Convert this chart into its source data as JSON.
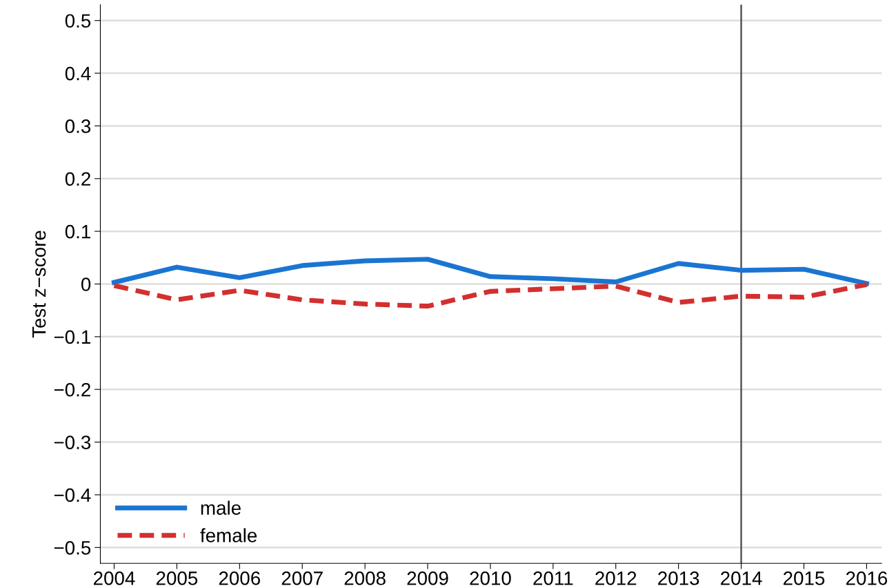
{
  "chart_data": {
    "type": "line",
    "ylabel": "Test z−score",
    "x": [
      2004,
      2005,
      2006,
      2007,
      2008,
      2009,
      2010,
      2011,
      2012,
      2013,
      2014,
      2015,
      2016
    ],
    "series": [
      {
        "name": "male",
        "color": "#1a75d2",
        "line_style": "solid",
        "values": [
          0.003,
          0.032,
          0.012,
          0.035,
          0.044,
          0.047,
          0.014,
          0.01,
          0.004,
          0.039,
          0.026,
          0.028,
          0.001
        ]
      },
      {
        "name": "female",
        "color": "#d32f2f",
        "line_style": "dashed",
        "values": [
          -0.003,
          -0.03,
          -0.012,
          -0.03,
          -0.038,
          -0.042,
          -0.014,
          -0.009,
          -0.004,
          -0.035,
          -0.023,
          -0.025,
          -0.001
        ]
      }
    ],
    "xlim": [
      2003.78,
      2016.24
    ],
    "xticks": [
      2004,
      2005,
      2006,
      2007,
      2008,
      2009,
      2010,
      2011,
      2012,
      2013,
      2014,
      2015,
      2016
    ],
    "ylim": [
      -0.53,
      0.53
    ],
    "yticks": [
      {
        "value": -0.5,
        "label": "−0.5"
      },
      {
        "value": -0.4,
        "label": "−0.4"
      },
      {
        "value": -0.3,
        "label": "−0.3"
      },
      {
        "value": -0.2,
        "label": "−0.2"
      },
      {
        "value": -0.1,
        "label": "−0.1"
      },
      0,
      0.1,
      0.2,
      0.3,
      0.4,
      0.5
    ],
    "ref_lines": [
      {
        "axis": "x",
        "value": 2014,
        "color": "#555555"
      }
    ],
    "grid": "y",
    "legend": "bottom left",
    "marker": "none"
  }
}
